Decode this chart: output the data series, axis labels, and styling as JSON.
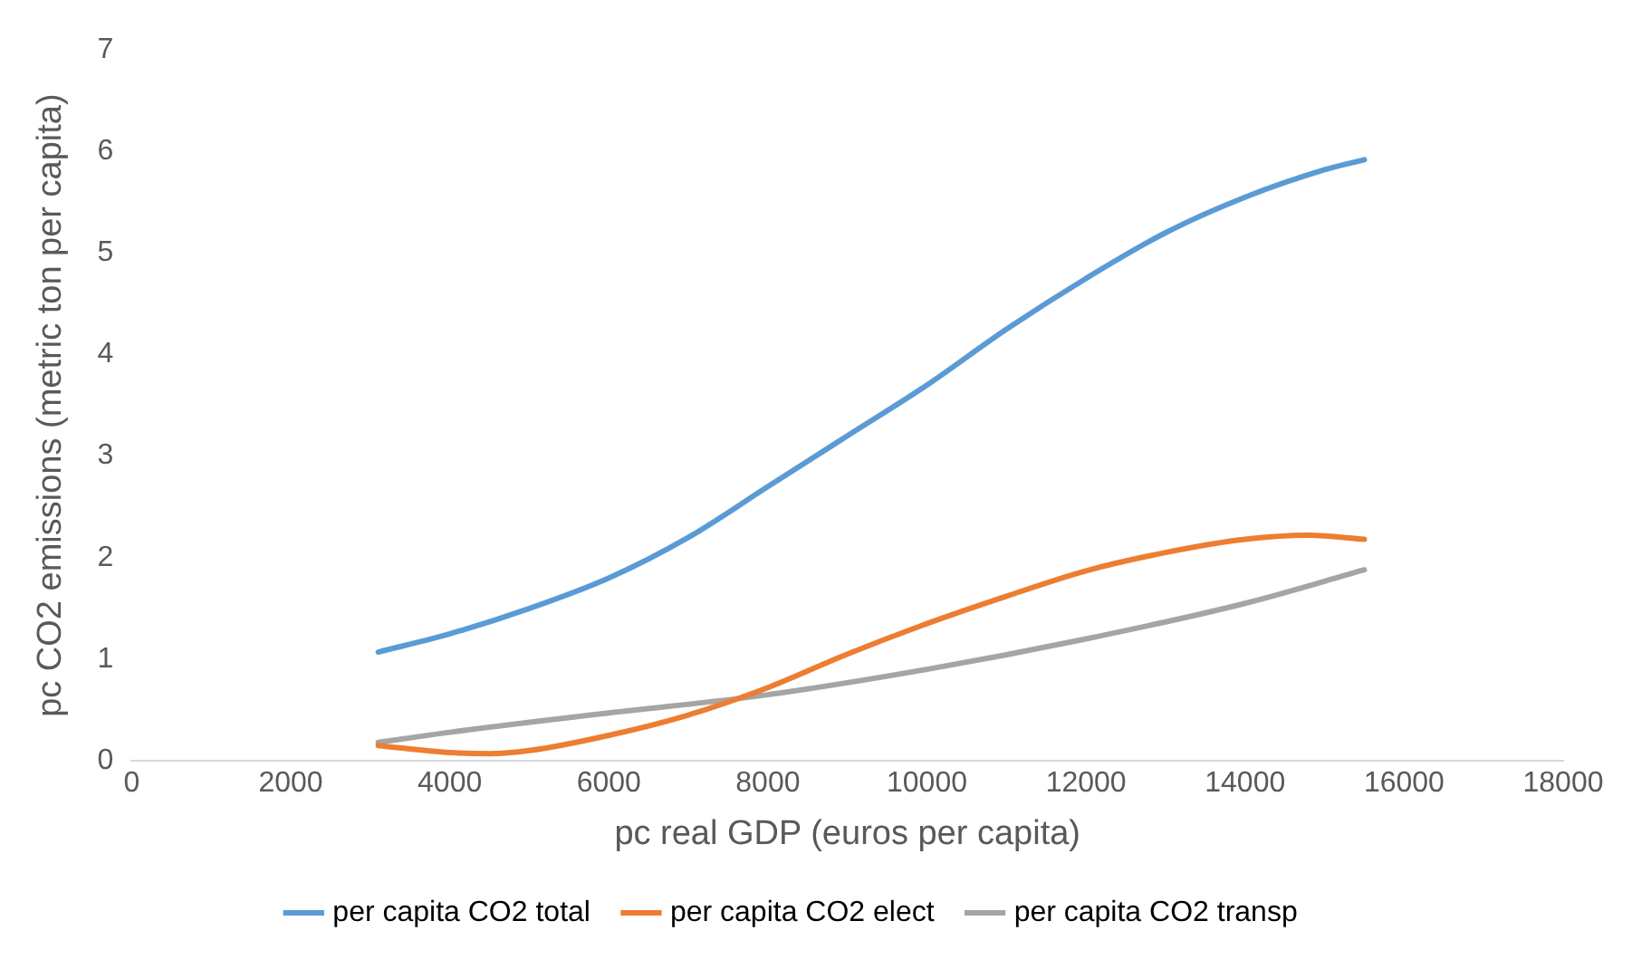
{
  "chart_data": {
    "type": "line",
    "xlabel": "pc real GDP (euros per capita)",
    "ylabel": "pc CO2 emissions (metric ton per capita)",
    "xlim": [
      0,
      18000
    ],
    "xticks": [
      0,
      2000,
      4000,
      6000,
      8000,
      10000,
      12000,
      14000,
      16000,
      18000
    ],
    "ylim": [
      0,
      7
    ],
    "yticks": [
      0,
      1,
      2,
      3,
      4,
      5,
      6,
      7
    ],
    "grid": false,
    "legend": "bottom",
    "marker": "none",
    "line_style": "solid",
    "series": [
      {
        "name": "per capita CO2 total",
        "color": "#5b9bd5",
        "x": [
          3100,
          4000,
          5000,
          6000,
          7000,
          8000,
          9000,
          10000,
          11000,
          12000,
          13000,
          14000,
          15000,
          15500
        ],
        "values": [
          1.07,
          1.25,
          1.5,
          1.8,
          2.2,
          2.7,
          3.2,
          3.7,
          4.25,
          4.75,
          5.2,
          5.55,
          5.82,
          5.92
        ]
      },
      {
        "name": "per capita CO2 elect",
        "color": "#ed7d31",
        "x": [
          3100,
          4000,
          4500,
          5000,
          6000,
          7000,
          8000,
          9000,
          10000,
          11000,
          12000,
          13000,
          14000,
          14800,
          15500
        ],
        "values": [
          0.15,
          0.08,
          0.07,
          0.1,
          0.25,
          0.45,
          0.72,
          1.05,
          1.35,
          1.62,
          1.87,
          2.05,
          2.18,
          2.22,
          2.18
        ]
      },
      {
        "name": "per capita CO2 transp",
        "color": "#a5a5a5",
        "x": [
          3100,
          4000,
          6000,
          8000,
          10000,
          12000,
          14000,
          15500
        ],
        "values": [
          0.18,
          0.28,
          0.47,
          0.65,
          0.9,
          1.2,
          1.55,
          1.88
        ]
      }
    ]
  }
}
